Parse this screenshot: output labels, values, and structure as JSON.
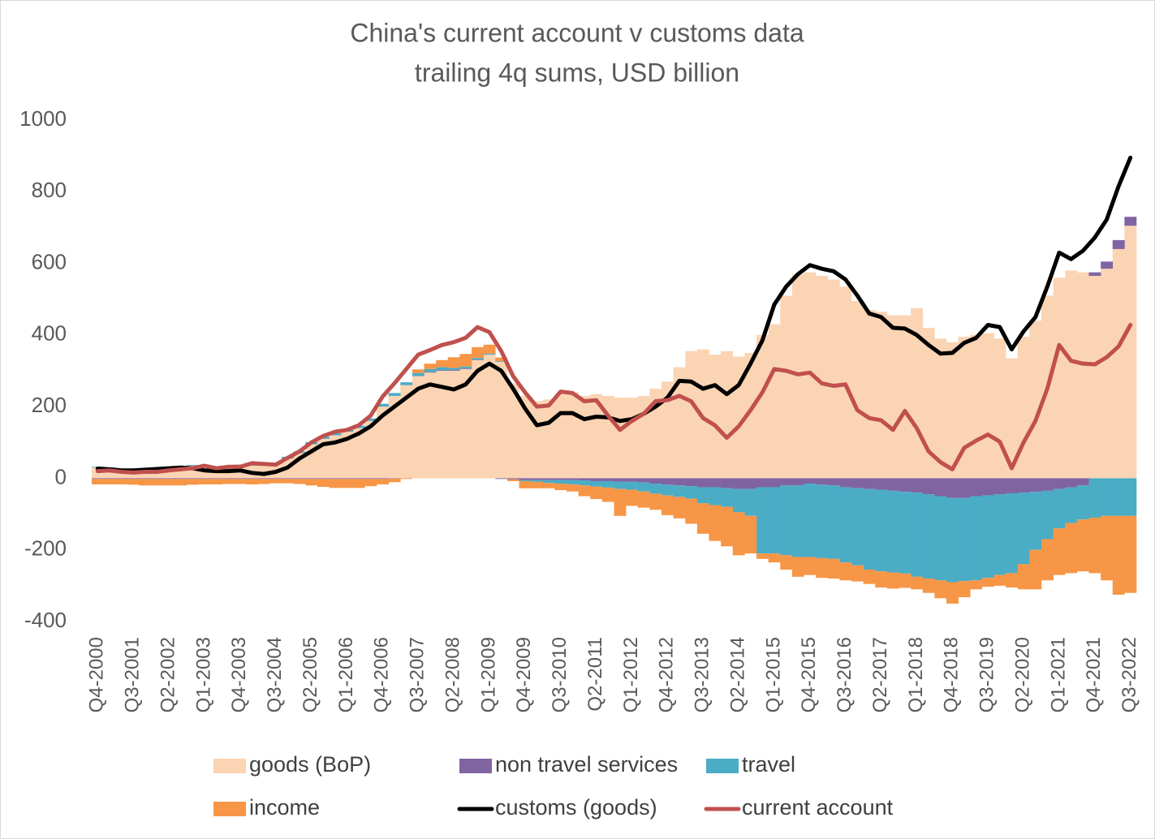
{
  "chart_data": {
    "type": "bar",
    "title": "China's current account v customs data",
    "subtitle": "trailing 4q sums, USD billion",
    "categories": [
      "Q4-2000",
      null,
      null,
      "Q3-2001",
      null,
      null,
      "Q2-2002",
      null,
      null,
      "Q1-2003",
      null,
      null,
      "Q4-2003",
      null,
      null,
      "Q3-2004",
      null,
      null,
      "Q2-2005",
      null,
      null,
      "Q1-2006",
      null,
      null,
      "Q4-2006",
      null,
      null,
      "Q3-2007",
      null,
      null,
      "Q2-2008",
      null,
      null,
      "Q1-2009",
      null,
      null,
      "Q4-2009",
      null,
      null,
      "Q3-2010",
      null,
      null,
      "Q2-2011",
      null,
      null,
      "Q1-2012",
      null,
      null,
      "Q4-2012",
      null,
      null,
      "Q3-2013",
      null,
      null,
      "Q2-2014",
      null,
      null,
      "Q1-2015",
      null,
      null,
      "Q4-2015",
      null,
      null,
      "Q3-2016",
      null,
      null,
      "Q2-2017",
      null,
      null,
      "Q1-2018",
      null,
      null,
      "Q4-2018",
      null,
      null,
      "Q3-2019",
      null,
      null,
      "Q2-2020",
      null,
      null,
      "Q1-2021",
      null,
      null,
      "Q4-2021",
      null,
      null,
      "Q3-2022"
    ],
    "ylim": [
      -400,
      1000
    ],
    "yticks": [
      -400,
      -200,
      0,
      200,
      400,
      600,
      800,
      1000
    ],
    "legend": "bottom",
    "series": [
      {
        "name": "goods (BoP)",
        "kind": "bar",
        "color": "#fbd4b4",
        "values": [
          30,
          28,
          25,
          22,
          22,
          25,
          30,
          32,
          35,
          35,
          30,
          30,
          35,
          35,
          35,
          40,
          55,
          70,
          95,
          110,
          120,
          130,
          140,
          160,
          200,
          230,
          260,
          285,
          295,
          300,
          300,
          305,
          330,
          345,
          325,
          265,
          230,
          215,
          220,
          235,
          240,
          230,
          235,
          230,
          225,
          225,
          230,
          250,
          270,
          310,
          355,
          360,
          345,
          355,
          340,
          350,
          400,
          430,
          510,
          570,
          575,
          565,
          555,
          535,
          495,
          470,
          465,
          455,
          455,
          475,
          420,
          390,
          380,
          395,
          400,
          405,
          390,
          335,
          395,
          440,
          510,
          560,
          580,
          575,
          565,
          585,
          640,
          705
        ]
      },
      {
        "name": "non travel services",
        "kind": "bar",
        "color": "#8064a2",
        "values": [
          -2,
          -2,
          -2,
          -2,
          -2,
          -2,
          -2,
          -2,
          -2,
          -2,
          -2,
          -2,
          -2,
          -2,
          -2,
          -2,
          -2,
          -2,
          -2,
          -2,
          -2,
          -2,
          -2,
          -2,
          -2,
          -1,
          0,
          1,
          2,
          2,
          2,
          2,
          2,
          0,
          -2,
          -3,
          -5,
          -5,
          -5,
          -5,
          -5,
          -6,
          -8,
          -8,
          -10,
          -10,
          -12,
          -15,
          -18,
          -20,
          -22,
          -25,
          -25,
          -28,
          -30,
          -30,
          -25,
          -25,
          -20,
          -20,
          -15,
          -18,
          -20,
          -25,
          -28,
          -30,
          -32,
          -35,
          -38,
          -40,
          -45,
          -50,
          -55,
          -55,
          -50,
          -48,
          -45,
          -42,
          -40,
          -38,
          -35,
          -30,
          -25,
          -20,
          10,
          20,
          25,
          25
        ]
      },
      {
        "name": "travel",
        "kind": "bar",
        "color": "#4bacc6",
        "values": [
          2,
          2,
          2,
          2,
          2,
          2,
          2,
          2,
          2,
          2,
          2,
          3,
          3,
          3,
          4,
          4,
          5,
          5,
          6,
          6,
          6,
          6,
          7,
          7,
          8,
          8,
          8,
          8,
          8,
          8,
          6,
          5,
          4,
          3,
          2,
          0,
          -3,
          -5,
          -8,
          -10,
          -12,
          -14,
          -15,
          -18,
          -20,
          -22,
          -25,
          -28,
          -30,
          -32,
          -35,
          -45,
          -50,
          -52,
          -65,
          -75,
          -185,
          -185,
          -195,
          -200,
          -205,
          -205,
          -205,
          -210,
          -215,
          -225,
          -228,
          -228,
          -228,
          -235,
          -235,
          -235,
          -235,
          -232,
          -235,
          -230,
          -225,
          -223,
          -200,
          -162,
          -135,
          -110,
          -100,
          -95,
          -110,
          -105,
          -105,
          -105
        ]
      },
      {
        "name": "income",
        "kind": "bar",
        "color": "#f79646",
        "values": [
          -15,
          -15,
          -15,
          -16,
          -18,
          -18,
          -18,
          -18,
          -16,
          -15,
          -15,
          -14,
          -14,
          -15,
          -14,
          -12,
          -12,
          -14,
          -18,
          -22,
          -25,
          -25,
          -25,
          -20,
          -15,
          -10,
          -2,
          10,
          15,
          20,
          30,
          35,
          30,
          25,
          10,
          -5,
          -20,
          -18,
          -15,
          -18,
          -20,
          -30,
          -35,
          -40,
          -75,
          -45,
          -45,
          -45,
          -55,
          -60,
          -70,
          -85,
          -100,
          -110,
          -120,
          -105,
          -15,
          -25,
          -40,
          -55,
          -50,
          -55,
          -55,
          -50,
          -45,
          -40,
          -45,
          -45,
          -40,
          -35,
          -40,
          -50,
          -60,
          -45,
          -25,
          -25,
          -30,
          -40,
          -70,
          -110,
          -115,
          -130,
          -140,
          -145,
          -155,
          -180,
          -220,
          -215
        ]
      },
      {
        "name": "customs (goods)",
        "kind": "line",
        "color": "#000000",
        "values": [
          27,
          25,
          22,
          22,
          24,
          26,
          28,
          30,
          28,
          22,
          20,
          20,
          22,
          15,
          12,
          18,
          30,
          55,
          75,
          95,
          100,
          110,
          125,
          145,
          175,
          200,
          225,
          250,
          262,
          255,
          248,
          262,
          300,
          320,
          300,
          250,
          195,
          148,
          155,
          182,
          182,
          165,
          172,
          170,
          160,
          165,
          180,
          200,
          225,
          272,
          270,
          250,
          260,
          235,
          260,
          320,
          385,
          485,
          535,
          570,
          595,
          585,
          578,
          555,
          510,
          460,
          450,
          420,
          418,
          400,
          372,
          348,
          350,
          378,
          392,
          428,
          422,
          360,
          410,
          450,
          535,
          630,
          612,
          635,
          672,
          722,
          815,
          895
        ]
      },
      {
        "name": "current account",
        "kind": "line",
        "color": "#c0504d",
        "values": [
          20,
          22,
          18,
          16,
          18,
          18,
          22,
          25,
          28,
          35,
          28,
          32,
          32,
          42,
          40,
          38,
          57,
          75,
          100,
          118,
          130,
          135,
          148,
          175,
          228,
          265,
          305,
          345,
          358,
          372,
          380,
          392,
          422,
          408,
          355,
          285,
          240,
          200,
          203,
          242,
          238,
          215,
          218,
          175,
          135,
          160,
          180,
          215,
          218,
          230,
          215,
          168,
          148,
          113,
          145,
          190,
          240,
          305,
          300,
          290,
          295,
          265,
          258,
          262,
          190,
          168,
          162,
          135,
          188,
          140,
          75,
          45,
          25,
          85,
          105,
          122,
          102,
          28,
          100,
          160,
          250,
          372,
          328,
          320,
          318,
          338,
          368,
          428
        ]
      }
    ]
  }
}
